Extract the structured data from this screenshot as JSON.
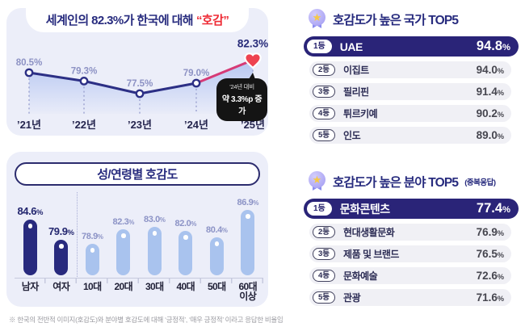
{
  "footnote": "※ 한국의 전반적 이미지(호감도)와 분야별 호감도에 대해 ‘긍정적’, ‘매우 긍정적’ 이라고 응답한 비율임",
  "trend": {
    "title_main": "세계인의 82.3%가 한국에 대해",
    "title_accent": "“호감”",
    "callout_line1": "’24년 대비",
    "callout_line2": "약 3.3%p 증가"
  },
  "demo": {
    "title": "성/연령별 호감도"
  },
  "country_panel": {
    "title": "호감도가 높은 국가 TOP5",
    "unit": "%",
    "rows": [
      {
        "rank": "1등",
        "name": "UAE",
        "value": "94.8"
      },
      {
        "rank": "2등",
        "name": "이집트",
        "value": "94.0"
      },
      {
        "rank": "3등",
        "name": "필리핀",
        "value": "91.4"
      },
      {
        "rank": "4등",
        "name": "튀르키예",
        "value": "90.2"
      },
      {
        "rank": "5등",
        "name": "인도",
        "value": "89.0"
      }
    ]
  },
  "field_panel": {
    "title": "호감도가 높은 분야 TOP5",
    "subtitle": "(중복응답)",
    "unit": "%",
    "rows": [
      {
        "rank": "1등",
        "name": "문화콘텐츠",
        "value": "77.4"
      },
      {
        "rank": "2등",
        "name": "현대생활문화",
        "value": "76.9"
      },
      {
        "rank": "3등",
        "name": "제품 및 브랜드",
        "value": "76.5"
      },
      {
        "rank": "4등",
        "name": "문화예술",
        "value": "72.6"
      },
      {
        "rank": "5등",
        "name": "관광",
        "value": "71.6"
      }
    ]
  },
  "colors": {
    "navy": "#2a2478",
    "line_navy": "#2c2f85",
    "line_pink": "#d63a76",
    "heart_red": "#ee4350",
    "accent_red": "#ee2b35",
    "muted_label": "#8d92c4",
    "value_dark": "#262a78",
    "area_fill": "#a9bdf0",
    "gender_bar": "#282a7e",
    "age_bar": "#a9c3ee",
    "gender_value": "#23266f",
    "age_value": "#8c93c6",
    "panel_bg": "#eceef9"
  },
  "chart_data": [
    {
      "type": "line",
      "title": "세계인의 82.3%가 한국에 대해 “호감”",
      "x": [
        "’21년",
        "’22년",
        "’23년",
        "’24년",
        "’25년"
      ],
      "values": [
        80.5,
        79.3,
        77.5,
        79.0,
        82.3
      ],
      "unit": "%",
      "ylim": [
        75,
        85
      ],
      "annotation": "’24년 대비 약 3.3%p 증가",
      "highlight_index": 4
    },
    {
      "type": "bar",
      "title": "성/연령별 호감도",
      "categories": [
        "남자",
        "여자",
        "10대",
        "20대",
        "30대",
        "40대",
        "50대",
        "60대\n이상"
      ],
      "values": [
        84.6,
        79.9,
        78.9,
        82.3,
        83.0,
        82.0,
        80.4,
        86.9
      ],
      "unit": "%",
      "groups": [
        "gender",
        "gender",
        "age",
        "age",
        "age",
        "age",
        "age",
        "age"
      ],
      "ylim": [
        70,
        90
      ]
    }
  ]
}
